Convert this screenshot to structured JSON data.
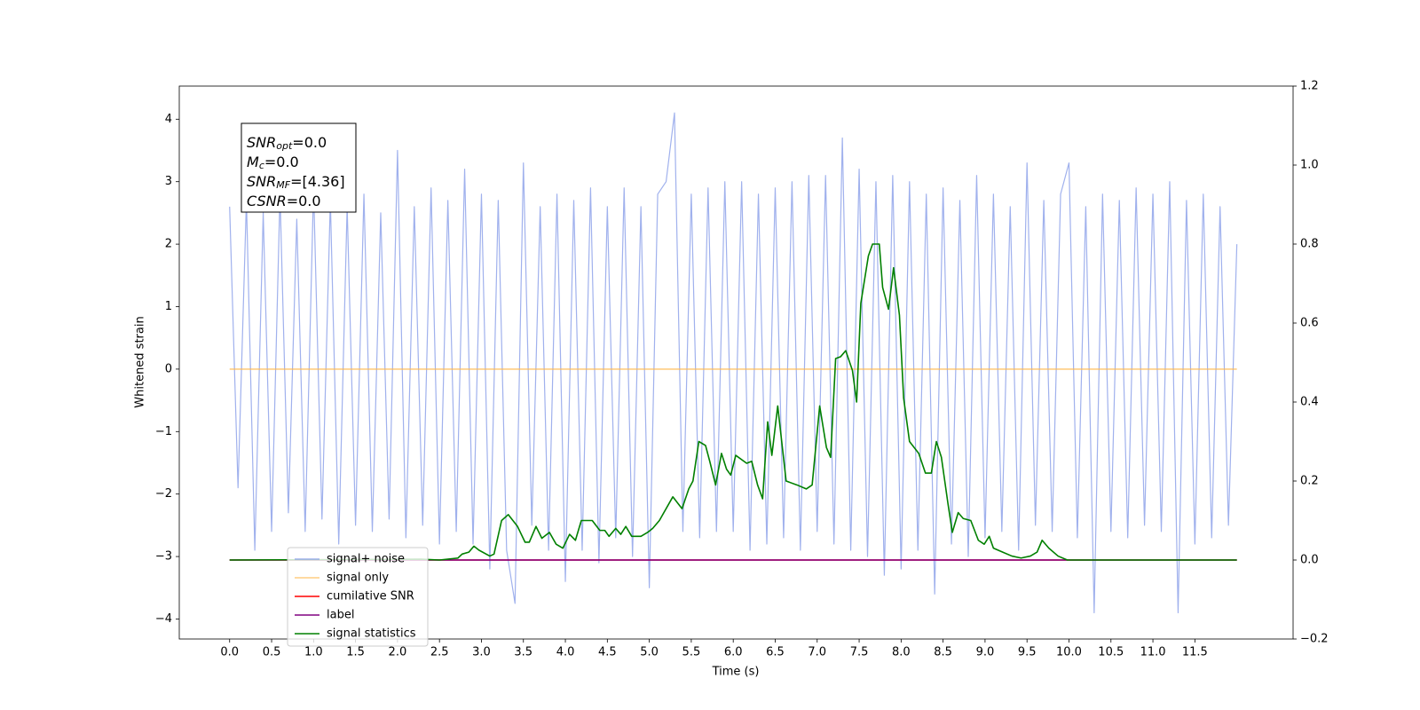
{
  "chart_data": {
    "type": "line",
    "xlabel": "Time (s)",
    "ylabel": "Whitened strain",
    "xlim": [
      -0.6,
      12.67
    ],
    "ylim": [
      -4.32,
      4.53
    ],
    "y2lim": [
      -0.2,
      1.2
    ],
    "xticks": [
      {
        "value": 0,
        "label": "0.0"
      },
      {
        "value": 0.5,
        "label": "0.5"
      },
      {
        "value": 1,
        "label": "1.0"
      },
      {
        "value": 1.5,
        "label": "1.5"
      },
      {
        "value": 2,
        "label": "2.0"
      },
      {
        "value": 2.5,
        "label": "2.5"
      },
      {
        "value": 3,
        "label": "3.0"
      },
      {
        "value": 3.5,
        "label": "3.5"
      },
      {
        "value": 4,
        "label": "4.0"
      },
      {
        "value": 4.5,
        "label": "4.5"
      },
      {
        "value": 5,
        "label": "5.0"
      },
      {
        "value": 5.5,
        "label": "5.5"
      },
      {
        "value": 6,
        "label": "6.0"
      },
      {
        "value": 6.5,
        "label": "6.5"
      },
      {
        "value": 7,
        "label": "7.0"
      },
      {
        "value": 7.5,
        "label": "7.5"
      },
      {
        "value": 8,
        "label": "8.0"
      },
      {
        "value": 8.5,
        "label": "8.5"
      },
      {
        "value": 9,
        "label": "9.0"
      },
      {
        "value": 9.5,
        "label": "9.5"
      },
      {
        "value": 10,
        "label": "10.0"
      },
      {
        "value": 10.5,
        "label": "10.5"
      },
      {
        "value": 11,
        "label": "11.0"
      },
      {
        "value": 11.5,
        "label": "11.5"
      }
    ],
    "yticks": [
      {
        "value": -4,
        "label": "−4"
      },
      {
        "value": -3,
        "label": "−3"
      },
      {
        "value": -2,
        "label": "−2"
      },
      {
        "value": -1,
        "label": "−1"
      },
      0,
      1,
      2,
      3,
      4
    ],
    "y2ticks": [
      {
        "value": -0.2,
        "label": "−0.2"
      },
      {
        "value": 0,
        "label": "0.0"
      },
      {
        "value": 0.2,
        "label": "0.2"
      },
      {
        "value": 0.4,
        "label": "0.4"
      },
      {
        "value": 0.6,
        "label": "0.6"
      },
      {
        "value": 0.8,
        "label": "0.8"
      },
      {
        "value": 1.0,
        "label": "1.0"
      },
      {
        "value": 1.2,
        "label": "1.2"
      }
    ],
    "legend": "lower left",
    "annotation": [
      {
        "main": "SNR",
        "sub": "opt",
        "rest": "=0.0"
      },
      {
        "main": "M",
        "sub": "c",
        "rest": "=0.0"
      },
      {
        "main": "SNR",
        "sub": "MF",
        "rest": "=[4.36]"
      },
      {
        "main": "CSNR",
        "rest": "=0.0"
      }
    ],
    "series": [
      {
        "name": "signal+ noise",
        "color": "#7890e6",
        "axis": "y",
        "x": [
          0.0,
          0.1,
          0.2,
          0.3,
          0.4,
          0.5,
          0.6,
          0.7,
          0.8,
          0.9,
          1.0,
          1.1,
          1.2,
          1.3,
          1.4,
          1.5,
          1.6,
          1.7,
          1.8,
          1.9,
          2.0,
          2.1,
          2.2,
          2.3,
          2.4,
          2.5,
          2.6,
          2.7,
          2.8,
          2.9,
          3.0,
          3.1,
          3.2,
          3.3,
          3.4,
          3.5,
          3.6,
          3.7,
          3.8,
          3.9,
          4.0,
          4.1,
          4.2,
          4.3,
          4.4,
          4.5,
          4.6,
          4.7,
          4.8,
          4.9,
          5.0,
          5.1,
          5.2,
          5.3,
          5.4,
          5.5,
          5.6,
          5.7,
          5.8,
          5.9,
          6.0,
          6.1,
          6.2,
          6.3,
          6.4,
          6.5,
          6.6,
          6.7,
          6.8,
          6.9,
          7.0,
          7.1,
          7.2,
          7.3,
          7.4,
          7.5,
          7.6,
          7.7,
          7.8,
          7.9,
          8.0,
          8.1,
          8.2,
          8.3,
          8.4,
          8.5,
          8.6,
          8.7,
          8.8,
          8.9,
          9.0,
          9.1,
          9.2,
          9.3,
          9.4,
          9.5,
          9.6,
          9.7,
          9.8,
          9.9,
          10.0,
          10.1,
          10.2,
          10.3,
          10.4,
          10.5,
          10.6,
          10.7,
          10.8,
          10.9,
          11.0,
          11.1,
          11.2,
          11.3,
          11.4,
          11.5,
          11.6,
          11.7,
          11.8,
          11.9,
          12.0
        ],
        "values": [
          2.6,
          -1.9,
          2.7,
          -2.9,
          2.5,
          -2.6,
          2.8,
          -2.3,
          2.4,
          -2.6,
          2.9,
          -2.4,
          2.7,
          -2.8,
          2.6,
          -2.5,
          2.8,
          -2.6,
          2.5,
          -2.4,
          3.5,
          -2.7,
          2.6,
          -2.5,
          2.9,
          -2.8,
          2.7,
          -2.6,
          3.2,
          -2.8,
          2.8,
          -3.2,
          2.7,
          -2.9,
          -3.75,
          3.3,
          -2.5,
          2.6,
          -2.9,
          2.8,
          -3.4,
          2.7,
          -2.9,
          2.9,
          -3.1,
          2.6,
          -2.7,
          2.9,
          -3.0,
          2.6,
          -3.5,
          2.8,
          3.0,
          4.1,
          -2.6,
          2.8,
          -2.7,
          2.9,
          -2.6,
          3.0,
          -2.6,
          3.0,
          -2.9,
          2.8,
          -2.8,
          2.9,
          -2.7,
          3.0,
          -2.9,
          3.1,
          -2.6,
          3.1,
          -2.8,
          3.7,
          -2.9,
          3.2,
          -3.0,
          3.0,
          -3.3,
          3.1,
          -3.2,
          3.0,
          -2.9,
          2.8,
          -3.6,
          2.9,
          -2.8,
          2.7,
          -3.0,
          3.1,
          -2.7,
          2.8,
          -2.6,
          2.6,
          -2.9,
          3.3,
          -2.5,
          2.7,
          -2.6,
          2.8,
          3.3,
          -2.7,
          2.6,
          -3.9,
          2.8,
          -2.6,
          2.7,
          -2.7,
          2.9,
          -2.5,
          2.8,
          -2.6,
          3.0,
          -3.9,
          2.7,
          -2.8,
          2.8,
          -2.7,
          2.6,
          -2.5,
          2.0
        ]
      },
      {
        "name": "signal only",
        "color": "#ffb84d",
        "axis": "y",
        "x": [
          0,
          12.0
        ],
        "values": [
          0,
          0
        ]
      },
      {
        "name": "cumilative SNR",
        "color": "#ff0000",
        "axis": "y2",
        "x": [
          0,
          12.0
        ],
        "values": [
          0,
          0
        ]
      },
      {
        "name": "label",
        "color": "#800080",
        "axis": "y2",
        "x": [
          0,
          12.0
        ],
        "values": [
          0,
          0
        ]
      },
      {
        "name": "signal statistics",
        "color": "#008000",
        "axis": "y2",
        "x": [
          0,
          2.28,
          2.5,
          2.72,
          2.77,
          2.85,
          2.91,
          2.97,
          3.1,
          3.15,
          3.24,
          3.32,
          3.43,
          3.52,
          3.57,
          3.65,
          3.72,
          3.81,
          3.89,
          3.97,
          4.05,
          4.12,
          4.19,
          4.32,
          4.41,
          4.47,
          4.52,
          4.6,
          4.66,
          4.72,
          4.79,
          4.9,
          4.98,
          5.04,
          5.12,
          5.28,
          5.39,
          5.47,
          5.52,
          5.59,
          5.67,
          5.72,
          5.79,
          5.86,
          5.92,
          5.97,
          6.03,
          6.16,
          6.22,
          6.29,
          6.35,
          6.41,
          6.46,
          6.53,
          6.63,
          6.76,
          6.87,
          6.94,
          7.03,
          7.11,
          7.16,
          7.22,
          7.28,
          7.34,
          7.42,
          7.47,
          7.52,
          7.61,
          7.66,
          7.74,
          7.78,
          7.85,
          7.91,
          7.98,
          8.03,
          8.1,
          8.21,
          8.29,
          8.36,
          8.42,
          8.48,
          8.56,
          8.61,
          8.68,
          8.74,
          8.83,
          8.92,
          8.99,
          9.05,
          9.1,
          9.21,
          9.32,
          9.43,
          9.54,
          9.62,
          9.68,
          9.76,
          9.87,
          9.98,
          12.0
        ],
        "values": [
          0,
          0.002,
          0,
          0.005,
          0.015,
          0.02,
          0.035,
          0.025,
          0.01,
          0.015,
          0.1,
          0.115,
          0.085,
          0.045,
          0.045,
          0.085,
          0.055,
          0.07,
          0.04,
          0.03,
          0.065,
          0.05,
          0.1,
          0.1,
          0.075,
          0.075,
          0.06,
          0.08,
          0.065,
          0.085,
          0.06,
          0.06,
          0.07,
          0.08,
          0.1,
          0.16,
          0.13,
          0.18,
          0.2,
          0.3,
          0.29,
          0.25,
          0.19,
          0.27,
          0.23,
          0.215,
          0.265,
          0.245,
          0.25,
          0.19,
          0.155,
          0.35,
          0.265,
          0.39,
          0.2,
          0.19,
          0.18,
          0.19,
          0.39,
          0.285,
          0.26,
          0.51,
          0.515,
          0.53,
          0.48,
          0.4,
          0.65,
          0.77,
          0.8,
          0.8,
          0.69,
          0.635,
          0.74,
          0.62,
          0.41,
          0.3,
          0.27,
          0.22,
          0.22,
          0.3,
          0.26,
          0.14,
          0.07,
          0.12,
          0.105,
          0.1,
          0.05,
          0.04,
          0.06,
          0.03,
          0.02,
          0.01,
          0.005,
          0.01,
          0.02,
          0.05,
          0.03,
          0.01,
          0,
          0
        ]
      }
    ]
  }
}
